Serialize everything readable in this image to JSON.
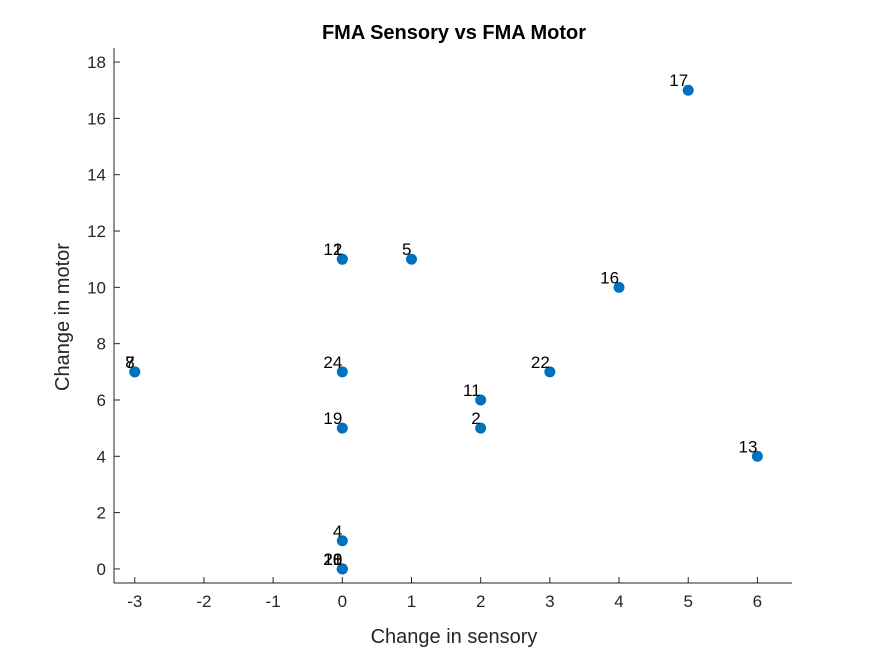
{
  "chart_data": {
    "type": "scatter",
    "title": "FMA Sensory vs FMA Motor",
    "xlabel": "Change in sensory",
    "ylabel": "Change in motor",
    "xlim": [
      -3.3,
      6.5
    ],
    "ylim": [
      -0.5,
      18.5
    ],
    "xticks": [
      -3,
      -2,
      -1,
      0,
      1,
      2,
      3,
      4,
      5,
      6
    ],
    "yticks": [
      0,
      2,
      4,
      6,
      8,
      10,
      12,
      14,
      16,
      18
    ],
    "grid": false,
    "marker_color": "#0072BD",
    "points": [
      {
        "x": 5,
        "y": 17,
        "label": "17"
      },
      {
        "x": 0,
        "y": 11,
        "label": "12"
      },
      {
        "x": 0,
        "y": 11,
        "label": "1"
      },
      {
        "x": 1,
        "y": 11,
        "label": "5"
      },
      {
        "x": 4,
        "y": 10,
        "label": "16"
      },
      {
        "x": -3,
        "y": 7,
        "label": "7"
      },
      {
        "x": -3,
        "y": 7,
        "label": "8"
      },
      {
        "x": 0,
        "y": 7,
        "label": "24"
      },
      {
        "x": 3,
        "y": 7,
        "label": "22"
      },
      {
        "x": 2,
        "y": 6,
        "label": "11"
      },
      {
        "x": 0,
        "y": 5,
        "label": "19"
      },
      {
        "x": 2,
        "y": 5,
        "label": "2"
      },
      {
        "x": 6,
        "y": 4,
        "label": "13"
      },
      {
        "x": 0,
        "y": 1,
        "label": "4"
      },
      {
        "x": 0,
        "y": 0,
        "label": "20"
      },
      {
        "x": 0,
        "y": 0,
        "label": "21"
      },
      {
        "x": 0,
        "y": 0,
        "label": "18"
      }
    ]
  }
}
